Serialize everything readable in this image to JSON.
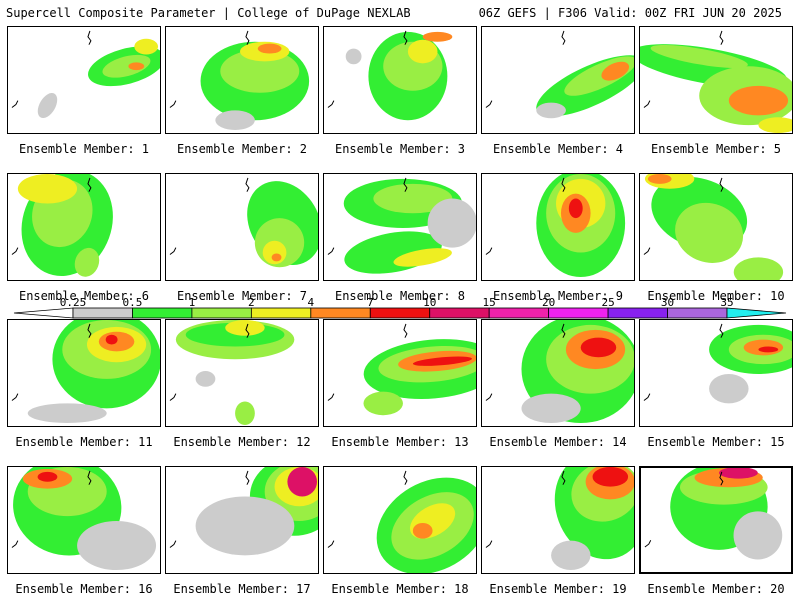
{
  "header": {
    "left": "Supercell Composite Parameter | College of DuPage NEXLAB",
    "right": "06Z GEFS | F306 Valid: 00Z FRI JUN 20 2025"
  },
  "legend": {
    "ticks": [
      "0.25",
      "0.5",
      "1",
      "2",
      "4",
      "7",
      "10",
      "15",
      "20",
      "25",
      "30",
      "35"
    ],
    "colors": [
      "#cccccc",
      "#33ee33",
      "#99ee44",
      "#eeee22",
      "#ff8822",
      "#ee1111",
      "#dd1166",
      "#ee22aa",
      "#ee22ee",
      "#8822ee",
      "#aa66dd",
      "#22eeee"
    ]
  },
  "members": [
    {
      "label": "Ensemble Member: 1"
    },
    {
      "label": "Ensemble Member: 2"
    },
    {
      "label": "Ensemble Member: 3"
    },
    {
      "label": "Ensemble Member: 4"
    },
    {
      "label": "Ensemble Member: 5"
    },
    {
      "label": "Ensemble Member: 6"
    },
    {
      "label": "Ensemble Member: 7"
    },
    {
      "label": "Ensemble Member: 8"
    },
    {
      "label": "Ensemble Member: 9"
    },
    {
      "label": "Ensemble Member: 10"
    },
    {
      "label": "Ensemble Member: 11"
    },
    {
      "label": "Ensemble Member: 12"
    },
    {
      "label": "Ensemble Member: 13"
    },
    {
      "label": "Ensemble Member: 14"
    },
    {
      "label": "Ensemble Member: 15"
    },
    {
      "label": "Ensemble Member: 16"
    },
    {
      "label": "Ensemble Member: 17"
    },
    {
      "label": "Ensemble Member: 18"
    },
    {
      "label": "Ensemble Member: 19"
    },
    {
      "label": "Ensemble Member: 20",
      "selected": true
    }
  ]
}
